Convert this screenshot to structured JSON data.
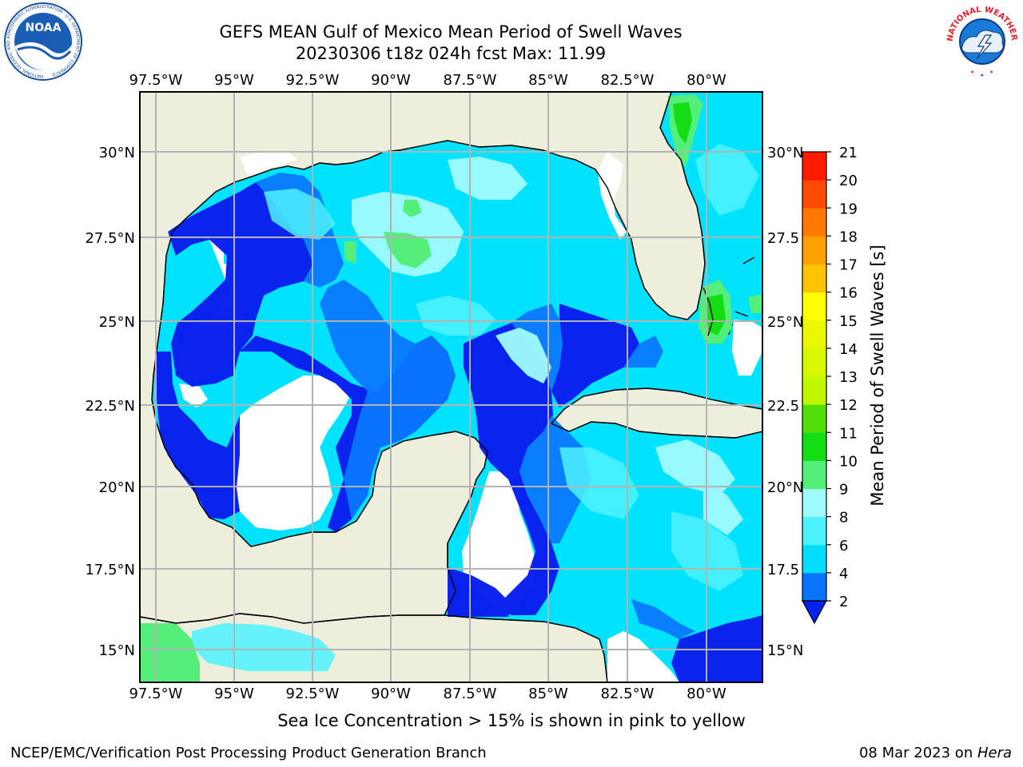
{
  "header": {
    "title_line1": "GEFS MEAN Gulf of Mexico Mean Period of Swell Waves",
    "title_line2": "20230306 t18z 024h fcst   Max: 11.99"
  },
  "logos": {
    "left": "NOAA",
    "left_ring": "NATIONAL OCEANIC AND ATMOSPHERIC ADMINISTRATION · U.S. DEPARTMENT OF COMMERCE",
    "right_ring": "NATIONAL WEATHER SERVICE"
  },
  "map": {
    "lon_labels": [
      "97.5°W",
      "95°W",
      "92.5°W",
      "90°W",
      "87.5°W",
      "85°W",
      "82.5°W",
      "80°W"
    ],
    "lat_labels_left": [
      "30°N",
      "27.5°N",
      "25°N",
      "22.5°N",
      "20°N",
      "17.5°N",
      "15°N"
    ],
    "lat_labels_right": [
      "30°N",
      "27.5",
      "25°N",
      "22.5",
      "20°N",
      "17.5",
      "15°N"
    ],
    "colors": {
      "land": "#eeeedc",
      "coast": "#000000",
      "grid": "#b3b3b3",
      "no_data": "#ffffff"
    }
  },
  "colorbar": {
    "label": "Mean Period of Swell Waves [s]",
    "ticks": [
      "2",
      "4",
      "6",
      "8",
      "9",
      "10",
      "11",
      "12",
      "13",
      "14",
      "15",
      "16",
      "17",
      "18",
      "19",
      "20",
      "21"
    ],
    "levels": [
      {
        "from": 2,
        "to": 4,
        "color": "#0a73ff"
      },
      {
        "from": 4,
        "to": 6,
        "color": "#00ddff"
      },
      {
        "from": 6,
        "to": 8,
        "color": "#4df2ff"
      },
      {
        "from": 8,
        "to": 9,
        "color": "#a0fbff"
      },
      {
        "from": 9,
        "to": 10,
        "color": "#54ee7a"
      },
      {
        "from": 10,
        "to": 11,
        "color": "#14dd14"
      },
      {
        "from": 11,
        "to": 12,
        "color": "#50dd08"
      },
      {
        "from": 12,
        "to": 13,
        "color": "#c0f800"
      },
      {
        "from": 13,
        "to": 14,
        "color": "#d8f800"
      },
      {
        "from": 14,
        "to": 15,
        "color": "#eaf800"
      },
      {
        "from": 15,
        "to": 16,
        "color": "#ffff00"
      },
      {
        "from": 16,
        "to": 17,
        "color": "#ffc400"
      },
      {
        "from": 17,
        "to": 18,
        "color": "#ffa000"
      },
      {
        "from": 18,
        "to": 19,
        "color": "#ff7800"
      },
      {
        "from": 19,
        "to": 20,
        "color": "#ff4a00"
      },
      {
        "from": 20,
        "to": 21,
        "color": "#ff1a00"
      }
    ],
    "under_color": "#0022ee",
    "top_color": "#ff0000"
  },
  "footer": {
    "note": "Sea Ice Concentration > 15% is shown in pink to yellow",
    "credit_left": "NCEP/EMC/Verification Post Processing Product Generation Branch",
    "date": "08 Mar 2023 on ",
    "host": "Hera"
  }
}
